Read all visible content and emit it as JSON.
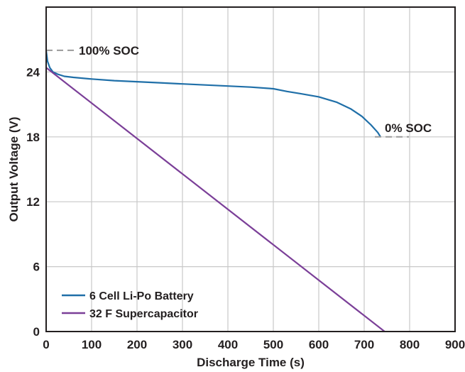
{
  "chart_data": {
    "type": "line",
    "title": "",
    "xlabel": "Discharge Time (s)",
    "ylabel": "Output Voltage (V)",
    "xlim": [
      0,
      900
    ],
    "ylim": [
      0,
      30
    ],
    "xticks": [
      0,
      100,
      200,
      300,
      400,
      500,
      600,
      700,
      800,
      900
    ],
    "yticks": [
      0,
      6,
      12,
      18,
      24
    ],
    "grid": true,
    "legend_position": "bottom-left",
    "series": [
      {
        "name": "6 Cell Li-Po Battery",
        "color": "#1f6fa8",
        "x": [
          0,
          3,
          8,
          15,
          25,
          40,
          60,
          100,
          150,
          200,
          250,
          300,
          350,
          400,
          450,
          500,
          530,
          560,
          600,
          640,
          670,
          695,
          715,
          730,
          736
        ],
        "y": [
          26.0,
          25.0,
          24.4,
          24.0,
          23.8,
          23.6,
          23.5,
          23.35,
          23.2,
          23.1,
          23.0,
          22.9,
          22.8,
          22.7,
          22.6,
          22.45,
          22.2,
          22.0,
          21.7,
          21.2,
          20.6,
          19.9,
          19.1,
          18.4,
          18.0
        ]
      },
      {
        "name": "32 F Supercapacitor",
        "color": "#7b3f98",
        "x": [
          0,
          745
        ],
        "y": [
          24.4,
          0
        ]
      }
    ],
    "annotations": [
      {
        "text": "100% SOC",
        "x": 0,
        "y": 26.0
      },
      {
        "text": "0% SOC",
        "x": 736,
        "y": 18.0
      }
    ]
  }
}
